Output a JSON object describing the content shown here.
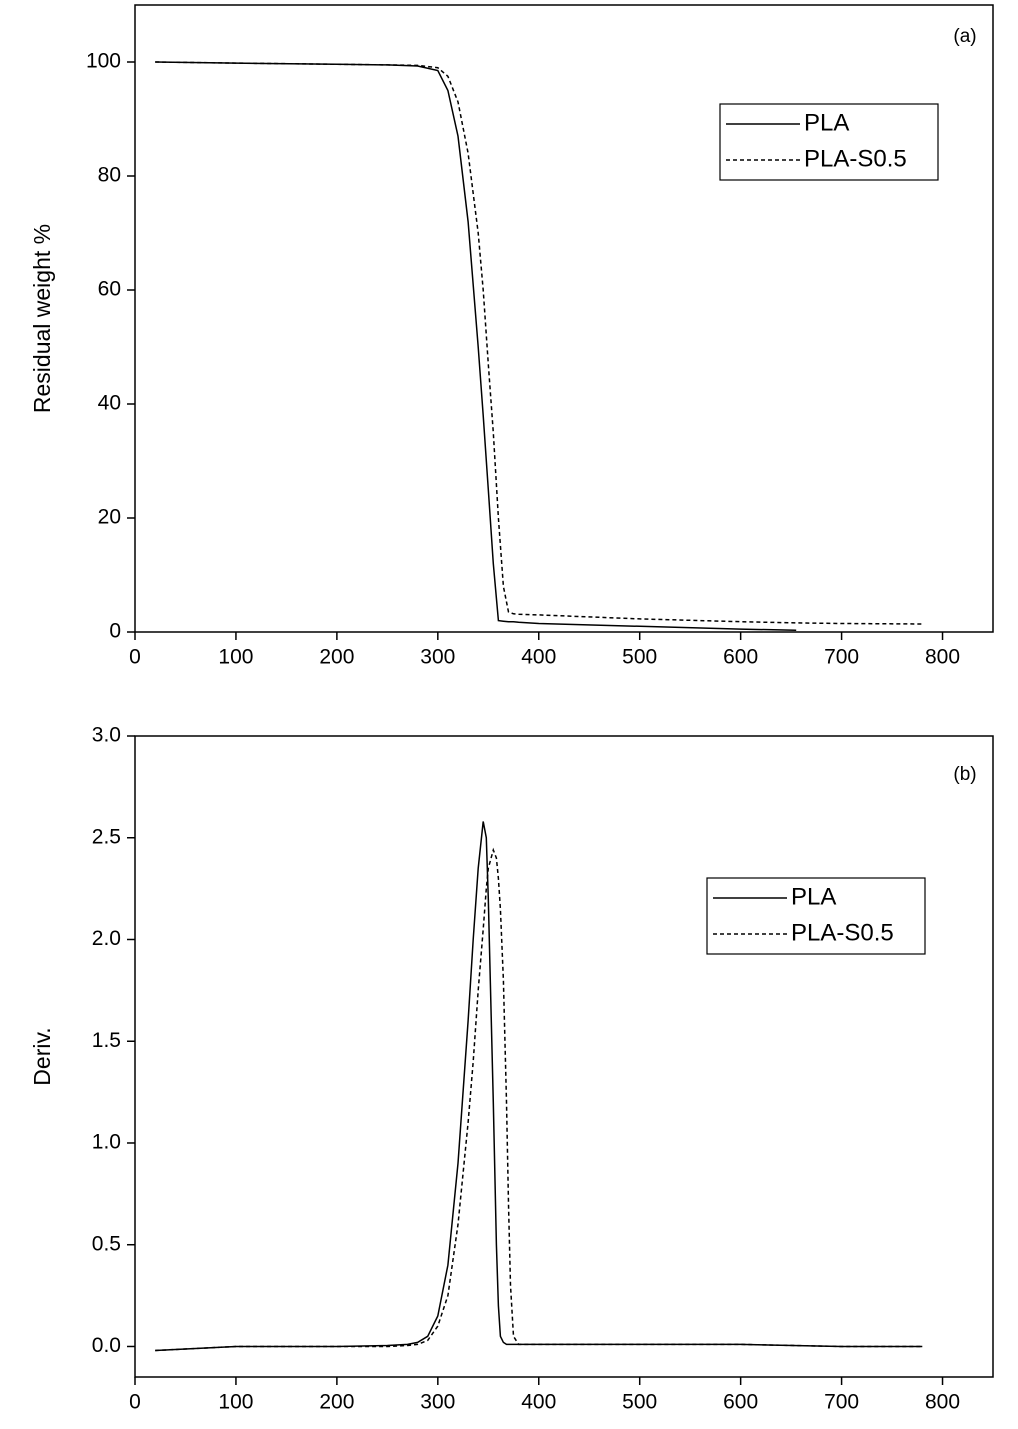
{
  "chart_data": [
    {
      "type": "line",
      "annotation": "(a)",
      "ylabel": "Residual weight %",
      "x": [
        20,
        100,
        200,
        250,
        280,
        300,
        310,
        320,
        330,
        340,
        345,
        350,
        355,
        360,
        365,
        370,
        375,
        380,
        400,
        500,
        600,
        655,
        700,
        780
      ],
      "series": [
        {
          "name": "PLA",
          "color": "#000000",
          "dashed": false,
          "values": [
            100,
            99.8,
            99.6,
            99.5,
            99.3,
            98.5,
            95,
            87,
            72,
            50,
            38,
            25,
            12,
            2,
            1.9,
            1.8,
            1.8,
            1.7,
            1.5,
            1,
            0.5,
            0.3,
            null,
            null
          ]
        },
        {
          "name": "PLA-S0.5",
          "color": "#000000",
          "dashed": true,
          "values": [
            100,
            99.8,
            99.6,
            99.5,
            99.4,
            99,
            97.5,
            93,
            84,
            70,
            60,
            47,
            35,
            20,
            8,
            3.5,
            3.2,
            3.1,
            3,
            2.3,
            1.8,
            1.6,
            1.5,
            1.4
          ]
        }
      ],
      "xlim": [
        0,
        850
      ],
      "xticks": [
        0,
        100,
        200,
        300,
        400,
        500,
        600,
        700,
        800
      ],
      "ylim": [
        0,
        110
      ],
      "yticks": [
        0,
        20,
        40,
        60,
        80,
        100
      ],
      "legend": "upper right"
    },
    {
      "type": "line",
      "annotation": "(b)",
      "ylabel": "Deriv.",
      "x": [
        20,
        100,
        200,
        250,
        270,
        280,
        290,
        300,
        310,
        320,
        330,
        335,
        340,
        345,
        348,
        350,
        355,
        358,
        360,
        362,
        365,
        368,
        370,
        372,
        375,
        380,
        400,
        500,
        600,
        700,
        780
      ],
      "series": [
        {
          "name": "PLA",
          "color": "#000000",
          "dashed": false,
          "values": [
            -0.02,
            0,
            0,
            0.005,
            0.01,
            0.02,
            0.05,
            0.15,
            0.4,
            0.9,
            1.6,
            2.0,
            2.35,
            2.58,
            2.5,
            2.2,
            1.2,
            0.5,
            0.2,
            0.05,
            0.02,
            0.01,
            0.01,
            0.01,
            0.01,
            0.01,
            0.01,
            0.01,
            0.01,
            0,
            0
          ]
        },
        {
          "name": "PLA-S0.5",
          "color": "#000000",
          "dashed": true,
          "values": [
            -0.02,
            0,
            0,
            0,
            0.005,
            0.01,
            0.03,
            0.1,
            0.25,
            0.6,
            1.1,
            1.4,
            1.75,
            2.05,
            2.25,
            2.35,
            2.44,
            2.4,
            2.3,
            2.15,
            1.8,
            1.2,
            0.7,
            0.3,
            0.05,
            0.01,
            0.01,
            0.01,
            0.01,
            0,
            0
          ]
        }
      ],
      "xlim": [
        0,
        850
      ],
      "xticks": [
        0,
        100,
        200,
        300,
        400,
        500,
        600,
        700,
        800
      ],
      "ylim": [
        -0.15,
        3.0
      ],
      "yticks": [
        {
          "value": 0,
          "label": "0.0"
        },
        0.5,
        {
          "value": 1,
          "label": "1.0"
        },
        1.5,
        {
          "value": 2,
          "label": "2.0"
        },
        2.5,
        {
          "value": 3,
          "label": "3.0"
        }
      ],
      "legend": "upper right"
    }
  ]
}
